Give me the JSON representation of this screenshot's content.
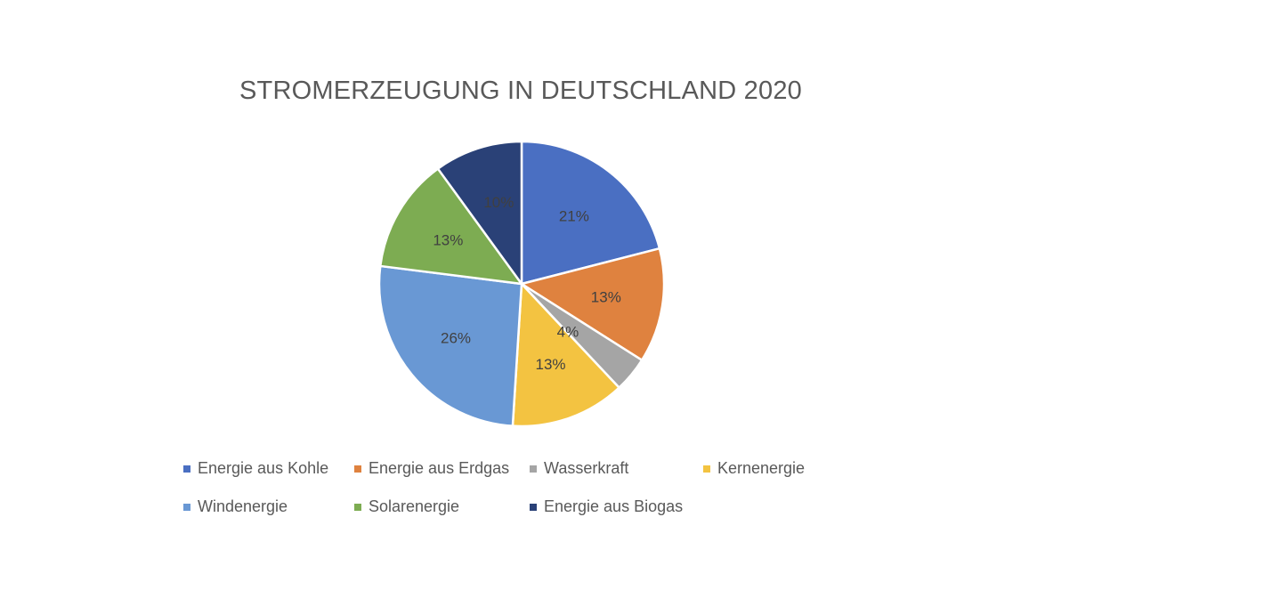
{
  "chart_data": {
    "type": "pie",
    "title": "STROMERZEUGUNG IN DEUTSCHLAND 2020",
    "slices": [
      {
        "name": "Energie aus Kohle",
        "value": 21,
        "label": "21%",
        "color": "#4A6FC2"
      },
      {
        "name": "Energie aus Erdgas",
        "value": 13,
        "label": "13%",
        "color": "#DF823F"
      },
      {
        "name": "Wasserkraft",
        "value": 4,
        "label": "4%",
        "color": "#A5A5A5"
      },
      {
        "name": "Kernenergie",
        "value": 13,
        "label": "13%",
        "color": "#F3C341"
      },
      {
        "name": "Windenergie",
        "value": 26,
        "label": "26%",
        "color": "#6998D4"
      },
      {
        "name": "Solarenergie",
        "value": 13,
        "label": "13%",
        "color": "#7DAC52"
      },
      {
        "name": "Energie aus Biogas",
        "value": 10,
        "label": "10%",
        "color": "#2A4177"
      }
    ],
    "legend_position": "bottom",
    "start_angle": "12 o'clock, clockwise"
  }
}
